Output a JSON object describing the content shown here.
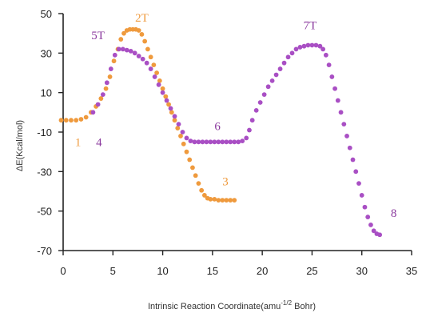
{
  "chart_data": {
    "type": "scatter",
    "title": "",
    "xlabel_main": "Intrinsic Reaction Coordinate(amu",
    "xlabel_sup": "-1/2",
    "xlabel_end": " Bohr)",
    "ylabel": "ΔE(Kcal/mol)",
    "xlim": [
      0,
      35
    ],
    "ylim": [
      -70,
      50
    ],
    "xticks": [
      0,
      5,
      10,
      15,
      20,
      25,
      30,
      35
    ],
    "yticks": [
      50,
      30,
      10,
      -10,
      -30,
      -50,
      -70
    ],
    "grid": false,
    "legend": "none",
    "colors": {
      "orange": "#ef9a3d",
      "purple": "#a94fc4"
    },
    "series": [
      {
        "color": "#ef9a3d",
        "points": [
          [
            -0.2,
            -4
          ],
          [
            0.3,
            -4
          ],
          [
            0.8,
            -4
          ],
          [
            1.3,
            -4
          ],
          [
            1.8,
            -3.5
          ],
          [
            2.3,
            -2.5
          ],
          [
            2.8,
            0
          ],
          [
            3.3,
            3
          ],
          [
            3.8,
            7
          ],
          [
            4.3,
            12
          ],
          [
            4.7,
            18
          ],
          [
            5.1,
            26
          ],
          [
            5.5,
            32
          ],
          [
            5.8,
            37
          ],
          [
            6.1,
            40
          ],
          [
            6.4,
            41.5
          ],
          [
            6.7,
            42
          ],
          [
            7.0,
            42
          ],
          [
            7.3,
            42
          ],
          [
            7.6,
            41.5
          ],
          [
            7.9,
            39.5
          ],
          [
            8.2,
            36
          ],
          [
            8.5,
            32
          ],
          [
            8.8,
            28
          ],
          [
            9.1,
            24
          ],
          [
            9.4,
            20
          ],
          [
            9.7,
            16
          ],
          [
            10.0,
            12
          ],
          [
            10.3,
            8
          ],
          [
            10.6,
            4
          ],
          [
            10.9,
            0
          ],
          [
            11.2,
            -4
          ],
          [
            11.5,
            -8
          ],
          [
            11.8,
            -12
          ],
          [
            12.1,
            -16
          ],
          [
            12.4,
            -20
          ],
          [
            12.7,
            -24
          ],
          [
            13.0,
            -28
          ],
          [
            13.3,
            -32
          ],
          [
            13.6,
            -36
          ],
          [
            13.9,
            -39.5
          ],
          [
            14.2,
            -42
          ],
          [
            14.5,
            -43.5
          ],
          [
            14.8,
            -44
          ],
          [
            15.2,
            -44
          ],
          [
            15.6,
            -44.5
          ],
          [
            16.0,
            -44.5
          ],
          [
            16.4,
            -44.5
          ],
          [
            16.8,
            -44.5
          ],
          [
            17.2,
            -44.5
          ]
        ]
      },
      {
        "color": "#a94fc4",
        "points": [
          [
            3.0,
            0
          ],
          [
            3.5,
            4
          ],
          [
            4.0,
            9
          ],
          [
            4.4,
            15
          ],
          [
            4.8,
            22
          ],
          [
            5.2,
            29
          ],
          [
            5.6,
            32
          ],
          [
            6.0,
            32
          ],
          [
            6.4,
            31.5
          ],
          [
            6.8,
            31
          ],
          [
            7.2,
            30
          ],
          [
            7.6,
            28.5
          ],
          [
            8.0,
            27
          ],
          [
            8.4,
            25
          ],
          [
            8.8,
            22
          ],
          [
            9.2,
            18
          ],
          [
            9.6,
            14
          ],
          [
            10.0,
            10
          ],
          [
            10.4,
            6
          ],
          [
            10.8,
            2
          ],
          [
            11.2,
            -2
          ],
          [
            11.6,
            -6
          ],
          [
            12.0,
            -10
          ],
          [
            12.4,
            -13
          ],
          [
            12.8,
            -14.5
          ],
          [
            13.2,
            -15
          ],
          [
            13.6,
            -15
          ],
          [
            14.0,
            -15
          ],
          [
            14.4,
            -15
          ],
          [
            14.8,
            -15
          ],
          [
            15.2,
            -15
          ],
          [
            15.6,
            -15
          ],
          [
            16.0,
            -15
          ],
          [
            16.4,
            -15
          ],
          [
            16.8,
            -15
          ],
          [
            17.2,
            -15
          ],
          [
            17.6,
            -15
          ],
          [
            18.0,
            -14.5
          ],
          [
            18.4,
            -13
          ],
          [
            18.7,
            -9
          ],
          [
            19.0,
            -4
          ],
          [
            19.4,
            1
          ],
          [
            19.8,
            5
          ],
          [
            20.2,
            9
          ],
          [
            20.6,
            13
          ],
          [
            21.0,
            16
          ],
          [
            21.4,
            19
          ],
          [
            21.8,
            22
          ],
          [
            22.2,
            25
          ],
          [
            22.6,
            28
          ],
          [
            23.0,
            30
          ],
          [
            23.4,
            32
          ],
          [
            23.8,
            33
          ],
          [
            24.2,
            33.5
          ],
          [
            24.6,
            34
          ],
          [
            25.0,
            34
          ],
          [
            25.4,
            34
          ],
          [
            25.8,
            33.5
          ],
          [
            26.1,
            32
          ],
          [
            26.4,
            29
          ],
          [
            26.7,
            24
          ],
          [
            27.0,
            18
          ],
          [
            27.3,
            12
          ],
          [
            27.6,
            6
          ],
          [
            27.9,
            0
          ],
          [
            28.2,
            -6
          ],
          [
            28.5,
            -12
          ],
          [
            28.8,
            -18
          ],
          [
            29.1,
            -24
          ],
          [
            29.4,
            -30
          ],
          [
            29.7,
            -36
          ],
          [
            30.0,
            -42
          ],
          [
            30.3,
            -48
          ],
          [
            30.6,
            -53
          ],
          [
            30.9,
            -57
          ],
          [
            31.2,
            -60
          ],
          [
            31.5,
            -61.5
          ],
          [
            31.8,
            -62
          ]
        ]
      }
    ],
    "annotations": [
      {
        "text": "1",
        "x": 1.5,
        "y": -17,
        "color": "#ef9a3d"
      },
      {
        "text": "4",
        "x": 3.6,
        "y": -17,
        "color": "#8b3a9e"
      },
      {
        "text": "5T",
        "x": 3.5,
        "y": 37,
        "color": "#8b3a9e"
      },
      {
        "text": "2T",
        "x": 7.9,
        "y": 46,
        "color": "#ef9a3d"
      },
      {
        "text": "6",
        "x": 15.5,
        "y": -9,
        "color": "#8b3a9e"
      },
      {
        "text": "3",
        "x": 16.3,
        "y": -37,
        "color": "#ef9a3d"
      },
      {
        "text": "7T",
        "x": 24.8,
        "y": 42,
        "color": "#8b3a9e"
      },
      {
        "text": "8",
        "x": 33.2,
        "y": -53,
        "color": "#8b3a9e"
      }
    ]
  }
}
